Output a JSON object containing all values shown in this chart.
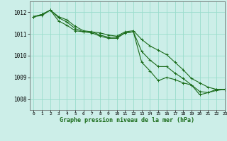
{
  "background_color": "#cceee8",
  "grid_color": "#99ddcc",
  "line_color": "#1a6b1a",
  "title": "Graphe pression niveau de la mer (hPa)",
  "xlim": [
    -0.5,
    23
  ],
  "ylim": [
    1007.5,
    1012.5
  ],
  "yticks": [
    1008,
    1009,
    1010,
    1011,
    1012
  ],
  "xticks": [
    0,
    1,
    2,
    3,
    4,
    5,
    6,
    7,
    8,
    9,
    10,
    11,
    12,
    13,
    14,
    15,
    16,
    17,
    18,
    19,
    20,
    21,
    22,
    23
  ],
  "series1": [
    1011.8,
    1011.9,
    1012.1,
    1011.8,
    1011.65,
    1011.35,
    1011.15,
    1011.1,
    1011.05,
    1010.95,
    1010.9,
    1011.1,
    1011.15,
    1010.75,
    1010.45,
    1010.25,
    1010.05,
    1009.7,
    1009.35,
    1008.95,
    1008.75,
    1008.55,
    1008.45,
    1008.45
  ],
  "series2": [
    1011.8,
    1011.9,
    1012.1,
    1011.75,
    1011.55,
    1011.25,
    1011.1,
    1011.1,
    1010.95,
    1010.85,
    1010.85,
    1011.05,
    1011.1,
    1010.2,
    1009.8,
    1009.5,
    1009.5,
    1009.2,
    1008.95,
    1008.65,
    1008.35,
    1008.3,
    1008.45,
    1008.45
  ],
  "series3": [
    1011.8,
    1011.85,
    1012.1,
    1011.6,
    1011.4,
    1011.15,
    1011.1,
    1011.05,
    1010.9,
    1010.8,
    1010.8,
    1011.05,
    1011.1,
    1009.7,
    1009.3,
    1008.85,
    1009.0,
    1008.9,
    1008.75,
    1008.65,
    1008.2,
    1008.3,
    1008.4,
    1008.45
  ]
}
